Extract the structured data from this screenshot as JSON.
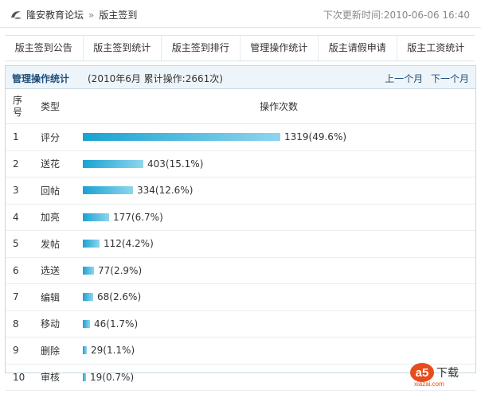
{
  "breadcrumb": {
    "forum": "隆安教育论坛",
    "separator": "»",
    "page": "版主签到"
  },
  "update_time": "下次更新时间:2010-06-06 16:40",
  "tabs": [
    {
      "label": "版主签到公告"
    },
    {
      "label": "版主签到统计"
    },
    {
      "label": "版主签到排行"
    },
    {
      "label": "管理操作统计"
    },
    {
      "label": "版主请假申请"
    },
    {
      "label": "版主工资统计"
    }
  ],
  "panel": {
    "title": "管理操作统计",
    "subtitle": "(2010年6月  累计操作:2661次)",
    "prev_month": "上一个月",
    "next_month": "下一个月"
  },
  "table": {
    "headers": {
      "seq": "序号",
      "type": "类型",
      "count": "操作次数"
    },
    "rows": [
      {
        "seq": "1",
        "type": "评分",
        "count": 1319,
        "label": "1319(49.6%)"
      },
      {
        "seq": "2",
        "type": "送花",
        "count": 403,
        "label": "403(15.1%)"
      },
      {
        "seq": "3",
        "type": "回帖",
        "count": 334,
        "label": "334(12.6%)"
      },
      {
        "seq": "4",
        "type": "加亮",
        "count": 177,
        "label": "177(6.7%)"
      },
      {
        "seq": "5",
        "type": "发帖",
        "count": 112,
        "label": "112(4.2%)"
      },
      {
        "seq": "6",
        "type": "选送",
        "count": 77,
        "label": "77(2.9%)"
      },
      {
        "seq": "7",
        "type": "编辑",
        "count": 68,
        "label": "68(2.6%)"
      },
      {
        "seq": "8",
        "type": "移动",
        "count": 46,
        "label": "46(1.7%)"
      },
      {
        "seq": "9",
        "type": "删除",
        "count": 29,
        "label": "29(1.1%)"
      },
      {
        "seq": "10",
        "type": "审核",
        "count": 19,
        "label": "19(0.7%)"
      }
    ]
  },
  "watermark": {
    "brand": "a5",
    "text": "下载",
    "domain": "xiazai.com"
  },
  "colors": {
    "bar_start": "#19a3d1",
    "bar_end": "#8fd5ee",
    "title": "#1f4e79"
  }
}
